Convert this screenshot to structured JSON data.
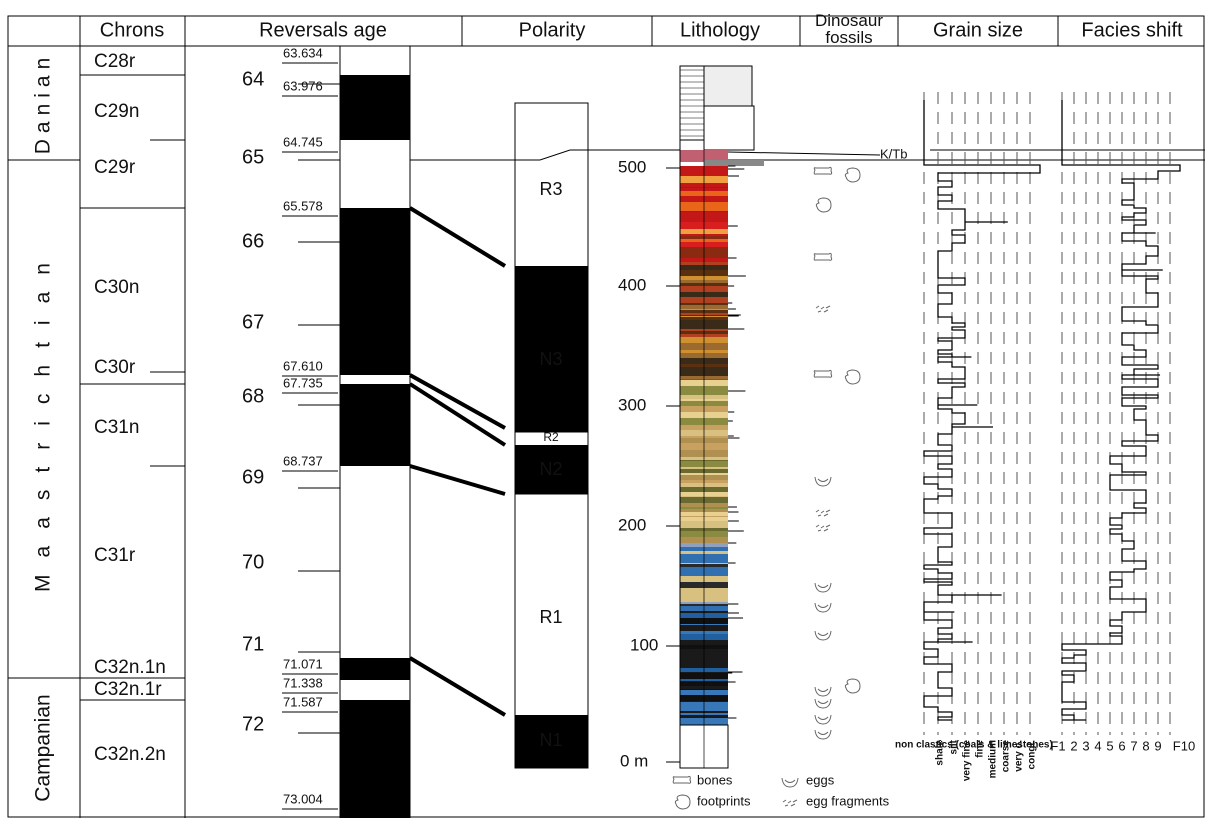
{
  "headers": [
    "Chrons",
    "Reversals age",
    "Polarity",
    "Lithology",
    "Dinosaur fossils",
    "Grain size",
    "Facies shift"
  ],
  "stages": [
    "Danian",
    "Maastrichtian",
    "Campanian"
  ],
  "chrons": [
    "C28r",
    "C29n",
    "C29r",
    "C30n",
    "C30r",
    "C31n",
    "C31r",
    "C32n.1n",
    "C32n.1r",
    "C32n.2n"
  ],
  "age_ticks": [
    "64",
    "65",
    "66",
    "67",
    "68",
    "69",
    "70",
    "71",
    "72"
  ],
  "reversal_ages": [
    "63.634",
    "63.976",
    "64.745",
    "65.578",
    "67.610",
    "67.735",
    "68.737",
    "71.071",
    "71.338",
    "71.587",
    "73.004"
  ],
  "polarity_zones": [
    "R3",
    "N3",
    "R2",
    "N2",
    "R1",
    "N1"
  ],
  "lithology_ticks": [
    "0 m",
    "100",
    "200",
    "300",
    "400",
    "500"
  ],
  "kt_label": "K/Tb",
  "legend": [
    "bones",
    "footprints",
    "eggs",
    "egg fragments"
  ],
  "grain_size_labels": [
    "non clastics (coals & limestones)",
    "shale",
    "silt",
    "very fine",
    "fine",
    "medium",
    "coarse",
    "very c.",
    "congl."
  ],
  "facies_labels": [
    "F1",
    "2",
    "3",
    "4",
    "5",
    "6",
    "7",
    "8",
    "9",
    "F10"
  ]
}
